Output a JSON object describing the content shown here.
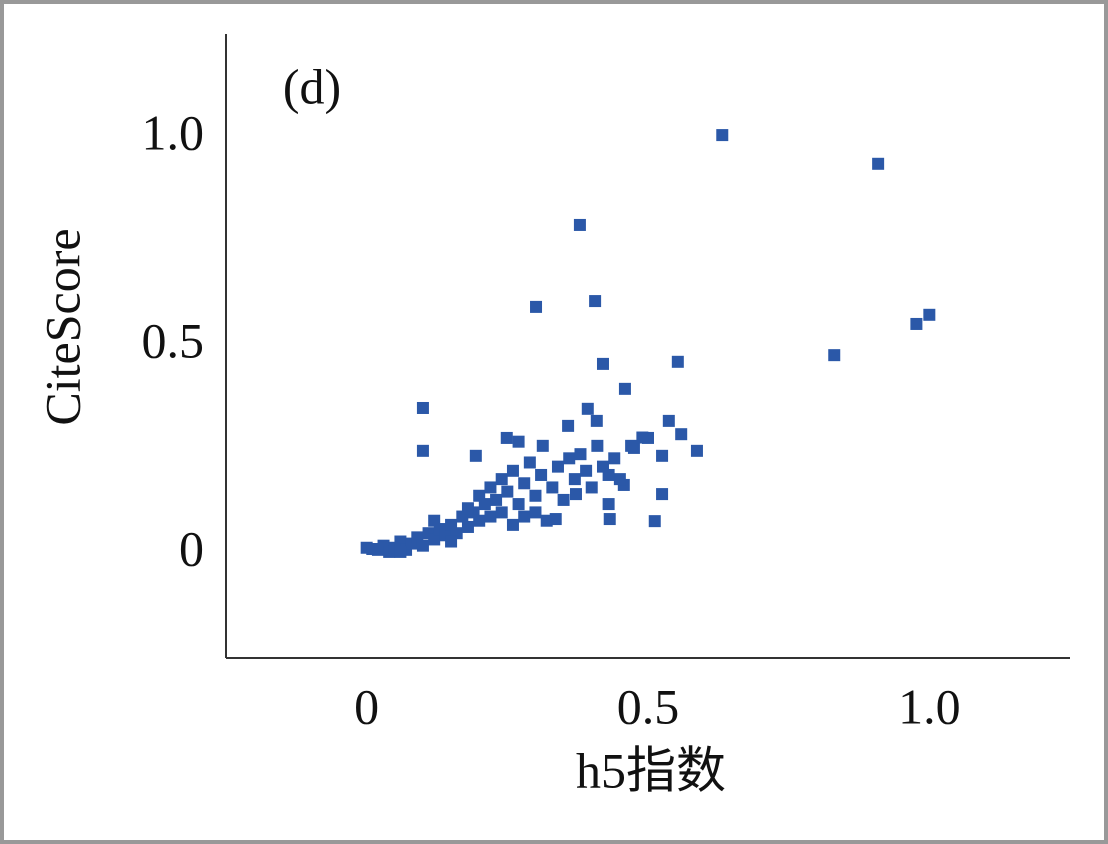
{
  "chart_data": {
    "type": "scatter",
    "title": "(d)",
    "x_label": "h5指数",
    "y_label": "CiteScore",
    "xlim": [
      -0.25,
      1.25
    ],
    "ylim": [
      -0.25,
      1.25
    ],
    "xticks": [
      0,
      0.5,
      {
        "value": 1.0,
        "label": "1.0"
      }
    ],
    "yticks": [
      0,
      0.5,
      {
        "value": 1.0,
        "label": "1.0"
      }
    ],
    "series": [
      {
        "color": "#2b58a8",
        "x": [
          0.632,
          0.909,
          0.379,
          0.301,
          0.406,
          1.0,
          0.977,
          0.831,
          0.42,
          0.553,
          0.459,
          0.1,
          0.1,
          0.393,
          0.537,
          0.559,
          0.587,
          0.525,
          0.512,
          0.525,
          0.432,
          0.194,
          0.249,
          0.313,
          0.358,
          0.409,
          0.5,
          0.475,
          0.457,
          0.372,
          0.336,
          0.0,
          0.01,
          0.02,
          0.03,
          0.04,
          0.05,
          0.06,
          0.07,
          0.08,
          0.09,
          0.1,
          0.11,
          0.12,
          0.13,
          0.14,
          0.15,
          0.16,
          0.17,
          0.18,
          0.19,
          0.2,
          0.2,
          0.21,
          0.22,
          0.22,
          0.23,
          0.24,
          0.24,
          0.25,
          0.26,
          0.26,
          0.27,
          0.28,
          0.28,
          0.29,
          0.3,
          0.3,
          0.31,
          0.32,
          0.33,
          0.34,
          0.35,
          0.36,
          0.37,
          0.38,
          0.39,
          0.4,
          0.41,
          0.42,
          0.43,
          0.44,
          0.45,
          0.47,
          0.49,
          0.43,
          0.15,
          0.06,
          0.12,
          0.18,
          0.27
        ],
        "values": [
          1.007,
          0.938,
          0.791,
          0.594,
          0.608,
          0.575,
          0.553,
          0.478,
          0.457,
          0.462,
          0.397,
          0.351,
          0.248,
          0.349,
          0.32,
          0.288,
          0.248,
          0.236,
          0.079,
          0.144,
          0.084,
          0.236,
          0.279,
          0.26,
          0.308,
          0.32,
          0.279,
          0.255,
          0.166,
          0.144,
          0.084,
          0.015,
          0.012,
          0.01,
          0.02,
          0.005,
          0.015,
          0.03,
          0.01,
          0.025,
          0.04,
          0.02,
          0.05,
          0.035,
          0.06,
          0.045,
          0.07,
          0.05,
          0.09,
          0.065,
          0.1,
          0.08,
          0.14,
          0.12,
          0.09,
          0.16,
          0.13,
          0.1,
          0.18,
          0.15,
          0.07,
          0.2,
          0.12,
          0.17,
          0.09,
          0.22,
          0.14,
          0.1,
          0.19,
          0.08,
          0.16,
          0.21,
          0.13,
          0.23,
          0.18,
          0.24,
          0.2,
          0.16,
          0.26,
          0.21,
          0.12,
          0.23,
          0.18,
          0.26,
          0.28,
          0.19,
          0.03,
          0.005,
          0.08,
          0.11,
          0.27
        ]
      }
    ]
  }
}
